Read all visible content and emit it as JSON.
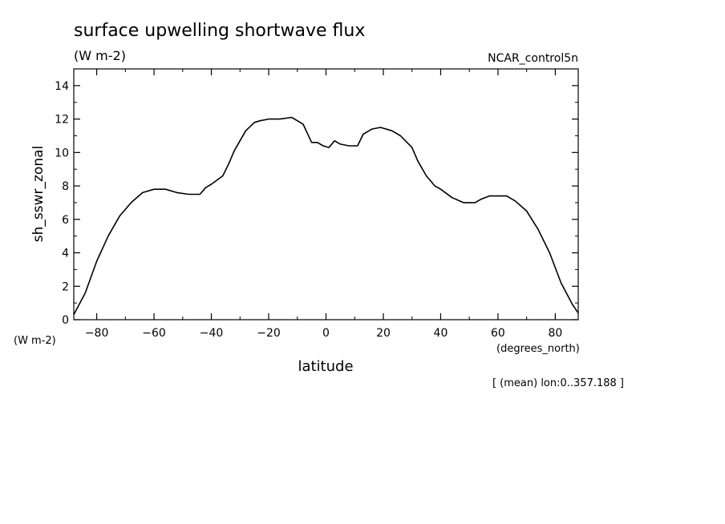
{
  "chart_data": {
    "type": "line",
    "title": "surface upwelling shortwave flux",
    "subtitle": "(W m-2)",
    "dataset_label": "NCAR_control5n",
    "ylabel": "sh_sswr_zonal",
    "yunits": "(W m-2)",
    "xlabel": "latitude",
    "xunits": "(degrees_north)",
    "footnote": "[ (mean) lon:0..357.188 ]",
    "xlim": [
      -88,
      88
    ],
    "ylim": [
      0,
      15
    ],
    "xticks": [
      -80,
      -60,
      -40,
      -20,
      0,
      20,
      40,
      60,
      80
    ],
    "yticks": [
      0,
      2,
      4,
      6,
      8,
      10,
      12,
      14
    ],
    "grid": false,
    "series": [
      {
        "x": [
          -88,
          -84,
          -80,
          -76,
          -72,
          -68,
          -64,
          -60,
          -56,
          -52,
          -48,
          -44,
          -42,
          -40,
          -36,
          -34,
          -32,
          -28,
          -25,
          -23,
          -20,
          -16,
          -12,
          -10,
          -8,
          -5,
          -3,
          -1,
          1,
          3,
          5,
          8,
          11,
          13,
          16,
          19,
          23,
          26,
          30,
          32,
          35,
          38,
          40,
          44,
          48,
          52,
          54,
          57,
          60,
          63,
          66,
          70,
          74,
          78,
          82,
          86,
          88
        ],
        "y": [
          0.3,
          1.6,
          3.5,
          5.0,
          6.2,
          7.0,
          7.6,
          7.8,
          7.8,
          7.6,
          7.5,
          7.5,
          7.9,
          8.1,
          8.6,
          9.3,
          10.1,
          11.3,
          11.8,
          11.9,
          12.0,
          12.0,
          12.1,
          11.9,
          11.7,
          10.6,
          10.6,
          10.4,
          10.3,
          10.7,
          10.5,
          10.4,
          10.4,
          11.1,
          11.4,
          11.5,
          11.3,
          11.0,
          10.3,
          9.5,
          8.6,
          8.0,
          7.8,
          7.3,
          7.0,
          7.0,
          7.2,
          7.4,
          7.4,
          7.4,
          7.1,
          6.5,
          5.4,
          4.0,
          2.2,
          0.9,
          0.4
        ]
      }
    ]
  }
}
